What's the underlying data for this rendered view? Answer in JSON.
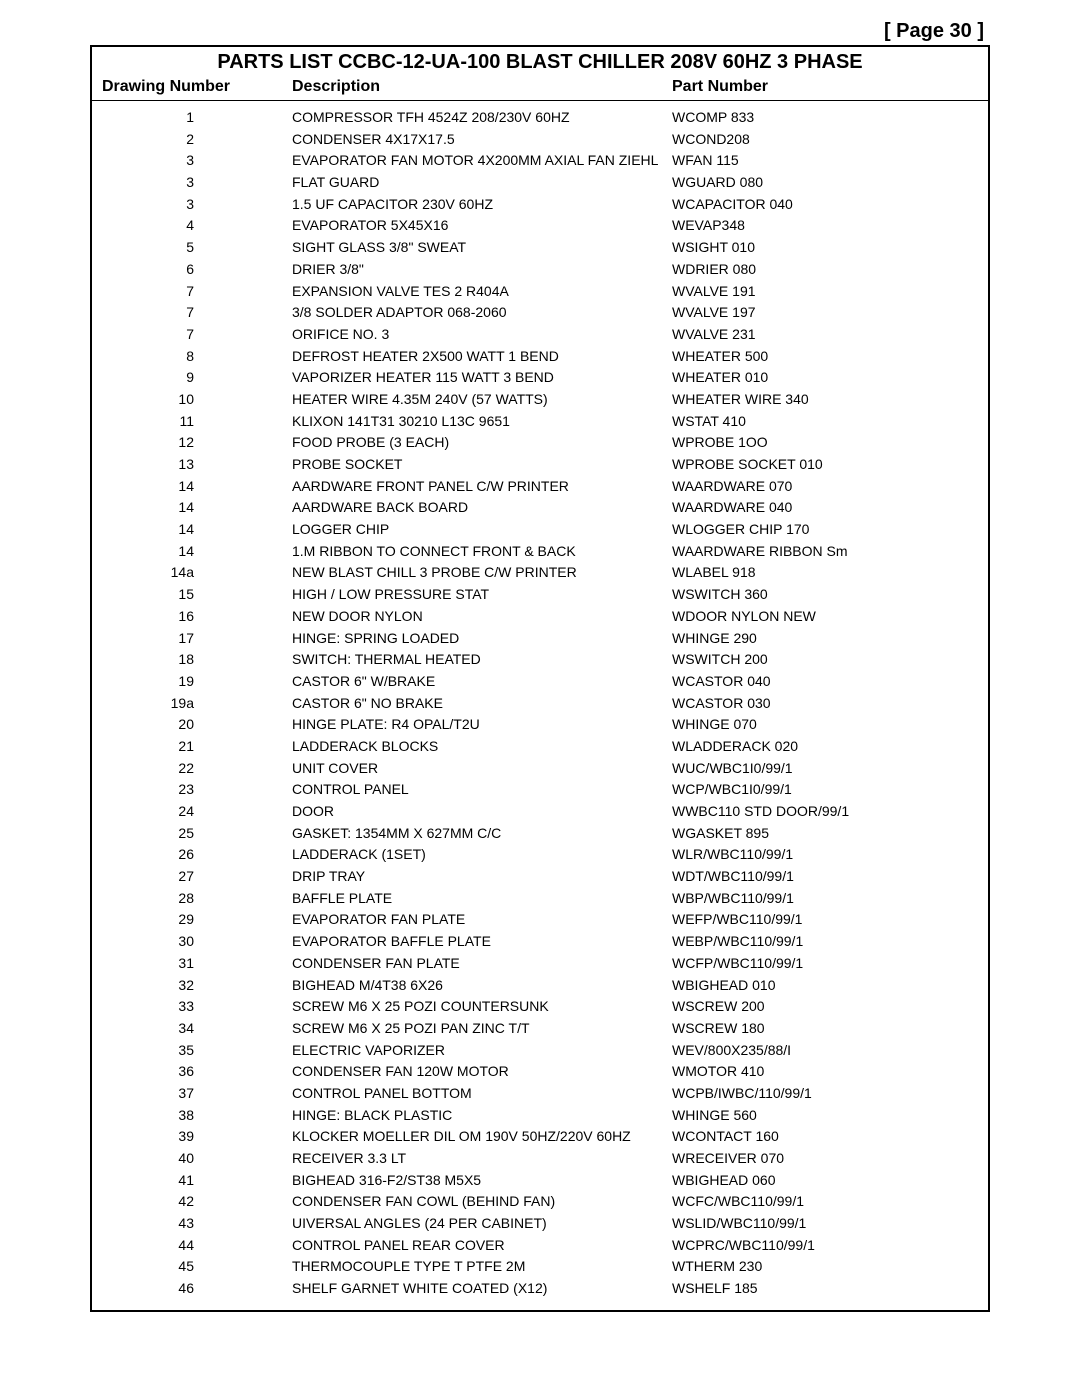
{
  "page_label": "[ Page 30 ]",
  "title": "PARTS LIST CCBC-12-UA-100 BLAST CHILLER 208V 60HZ 3 PHASE",
  "headers": {
    "drawing": "Drawing Number",
    "description": "Description",
    "part": "Part Number"
  },
  "rows": [
    {
      "d": "1",
      "desc": "COMPRESSOR TFH 4524Z 208/230V  60HZ",
      "p": "WCOMP 833"
    },
    {
      "d": "2",
      "desc": "CONDENSER 4X17X17.5",
      "p": "WCOND208"
    },
    {
      "d": "3",
      "desc": "EVAPORATOR FAN MOTOR 4X200MM AXIAL FAN ZIEHL",
      "p": "WFAN 115"
    },
    {
      "d": "3",
      "desc": "FLAT GUARD",
      "p": "WGUARD 080"
    },
    {
      "d": "3",
      "desc": "1.5 UF CAPACITOR 230V 60HZ",
      "p": "WCAPACITOR 040"
    },
    {
      "d": "4",
      "desc": "EVAPORATOR 5X45X16",
      "p": "WEVAP348"
    },
    {
      "d": "5",
      "desc": "SIGHT GLASS 3/8\" SWEAT",
      "p": "WSIGHT 010"
    },
    {
      "d": "6",
      "desc": "DRIER 3/8\"",
      "p": "WDRIER 080"
    },
    {
      "d": "7",
      "desc": "EXPANSION VALVE TES 2 R404A",
      "p": "WVALVE 191"
    },
    {
      "d": "7",
      "desc": "3/8 SOLDER ADAPTOR 068-2060",
      "p": "WVALVE 197"
    },
    {
      "d": "7",
      "desc": "ORIFICE NO. 3",
      "p": "WVALVE 231"
    },
    {
      "d": "8",
      "desc": "DEFROST HEATER 2X500 WATT 1 BEND",
      "p": "WHEATER 500"
    },
    {
      "d": "9",
      "desc": "VAPORIZER HEATER 115 WATT 3 BEND",
      "p": "WHEATER 010"
    },
    {
      "d": "10",
      "desc": "HEATER WIRE 4.35M 240V (57 WATTS)",
      "p": "WHEATER WIRE 340"
    },
    {
      "d": "11",
      "desc": "KLIXON 141T31 30210 L13C 9651",
      "p": "WSTAT 410"
    },
    {
      "d": "12",
      "desc": "FOOD PROBE  (3 EACH)",
      "p": "WPROBE 1OO"
    },
    {
      "d": "13",
      "desc": "PROBE SOCKET",
      "p": "WPROBE SOCKET 010"
    },
    {
      "d": "14",
      "desc": "AARDWARE FRONT PANEL C/W PRINTER",
      "p": "WAARDWARE 070"
    },
    {
      "d": "14",
      "desc": "AARDWARE BACK BOARD",
      "p": "WAARDWARE 040"
    },
    {
      "d": "14",
      "desc": "LOGGER CHIP",
      "p": "WLOGGER CHIP 170"
    },
    {
      "d": "14",
      "desc": "1.M RIBBON TO CONNECT FRONT & BACK",
      "p": "WAARDWARE RIBBON Sm"
    },
    {
      "d": "14a",
      "desc": "NEW BLAST CHILL 3 PROBE C/W PRINTER",
      "p": "WLABEL 918"
    },
    {
      "d": "15",
      "desc": "HIGH / LOW PRESSURE STAT",
      "p": "WSWITCH 360"
    },
    {
      "d": "16",
      "desc": "NEW DOOR NYLON",
      "p": "WDOOR NYLON NEW"
    },
    {
      "d": "17",
      "desc": "HINGE: SPRING LOADED",
      "p": "WHINGE 290"
    },
    {
      "d": "18",
      "desc": "SWITCH: THERMAL HEATED",
      "p": "WSWITCH 200"
    },
    {
      "d": "19",
      "desc": "CASTOR 6\" W/BRAKE",
      "p": "WCASTOR 040"
    },
    {
      "d": "19a",
      "desc": "CASTOR 6\" NO BRAKE",
      "p": "WCASTOR 030"
    },
    {
      "d": "20",
      "desc": "HINGE PLATE: R4 OPAL/T2U",
      "p": "WHINGE 070"
    },
    {
      "d": "21",
      "desc": "LADDERACK BLOCKS",
      "p": "WLADDERACK 020"
    },
    {
      "d": "22",
      "desc": "UNIT COVER",
      "p": "WUC/WBC1I0/99/1"
    },
    {
      "d": "23",
      "desc": "CONTROL PANEL",
      "p": "WCP/WBC1I0/99/1"
    },
    {
      "d": "24",
      "desc": "DOOR",
      "p": "WWBC110 STD DOOR/99/1"
    },
    {
      "d": "25",
      "desc": "GASKET: 1354MM X 627MM C/C",
      "p": "WGASKET 895"
    },
    {
      "d": "26",
      "desc": "LADDERACK (1SET)",
      "p": "WLR/WBC110/99/1"
    },
    {
      "d": "27",
      "desc": "DRIP TRAY",
      "p": "WDT/WBC110/99/1"
    },
    {
      "d": "28",
      "desc": "BAFFLE PLATE",
      "p": "WBP/WBC110/99/1"
    },
    {
      "d": "29",
      "desc": "EVAPORATOR FAN PLATE",
      "p": "WEFP/WBC110/99/1"
    },
    {
      "d": "30",
      "desc": "EVAPORATOR BAFFLE PLATE",
      "p": "WEBP/WBC110/99/1"
    },
    {
      "d": "31",
      "desc": "CONDENSER FAN PLATE",
      "p": "WCFP/WBC110/99/1"
    },
    {
      "d": "32",
      "desc": "BIGHEAD M/4T38 6X26",
      "p": "WBIGHEAD 010"
    },
    {
      "d": "33",
      "desc": "SCREW M6 X 25 POZI COUNTERSUNK",
      "p": "WSCREW 200"
    },
    {
      "d": "34",
      "desc": "SCREW M6 X 25 POZI PAN ZINC T/T",
      "p": "WSCREW 180"
    },
    {
      "d": "35",
      "desc": "ELECTRIC VAPORIZER",
      "p": "WEV/800X235/88/I"
    },
    {
      "d": "36",
      "desc": "CONDENSER FAN  120W MOTOR",
      "p": "WMOTOR 410"
    },
    {
      "d": "37",
      "desc": "CONTROL PANEL BOTTOM",
      "p": "WCPB/IWBC/110/99/1"
    },
    {
      "d": "38",
      "desc": "HINGE: BLACK PLASTIC",
      "p": "WHINGE 560"
    },
    {
      "d": "39",
      "desc": "KLOCKER MOELLER DIL OM 190V 50HZ/220V 60HZ",
      "p": "WCONTACT 160"
    },
    {
      "d": "40",
      "desc": "RECEIVER 3.3 LT",
      "p": "WRECEIVER 070"
    },
    {
      "d": "41",
      "desc": "BIGHEAD 316-F2/ST38 M5X5",
      "p": "WBIGHEAD 060"
    },
    {
      "d": "42",
      "desc": "CONDENSER FAN COWL (BEHIND FAN)",
      "p": "WCFC/WBC110/99/1"
    },
    {
      "d": "43",
      "desc": "UIVERSAL ANGLES (24 PER CABINET)",
      "p": "WSLID/WBC110/99/1"
    },
    {
      "d": "44",
      "desc": "CONTROL PANEL REAR COVER",
      "p": "WCPRC/WBC110/99/1"
    },
    {
      "d": "45",
      "desc": "THERMOCOUPLE TYPE T PTFE 2M",
      "p": "WTHERM 230"
    },
    {
      "d": "46",
      "desc": "SHELF GARNET WHITE COATED (X12)",
      "p": "WSHELF 185"
    }
  ]
}
